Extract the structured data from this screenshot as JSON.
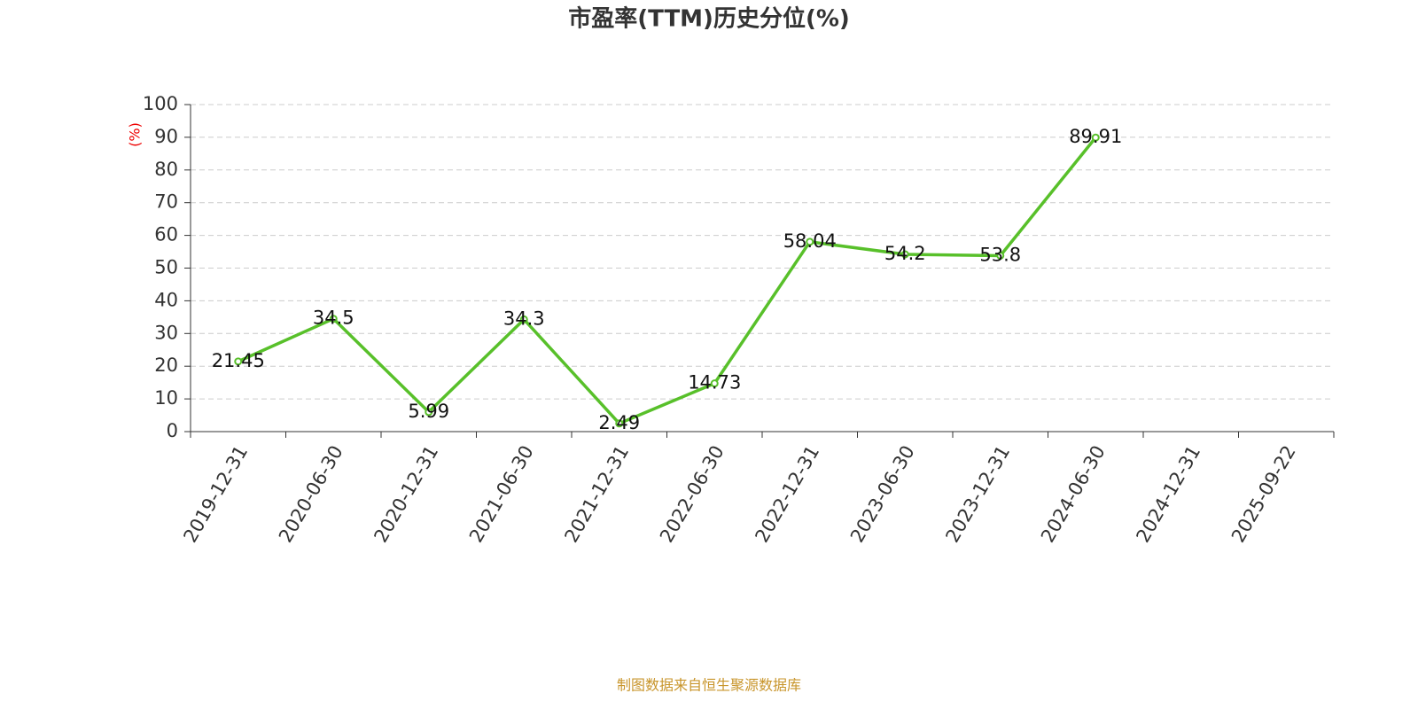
{
  "chart_data": {
    "type": "line",
    "title": "市盈率(TTM)历史分位(%)",
    "y_label": "(%)",
    "categories": [
      "2019-12-31",
      "2020-06-30",
      "2020-12-31",
      "2021-06-30",
      "2021-12-31",
      "2022-06-30",
      "2022-12-31",
      "2023-06-30",
      "2023-12-31",
      "2024-06-30",
      "2024-12-31",
      "2025-09-22"
    ],
    "values": [
      21.45,
      34.5,
      5.99,
      34.3,
      2.49,
      14.73,
      58.04,
      54.2,
      53.8,
      89.91,
      null,
      null
    ],
    "color": "#58c02a",
    "ylim": [
      0,
      100
    ],
    "yticks": [
      0,
      10,
      20,
      30,
      40,
      50,
      60,
      70,
      80,
      90,
      100
    ],
    "grid": true,
    "source": "制图数据来自恒生聚源数据库"
  }
}
